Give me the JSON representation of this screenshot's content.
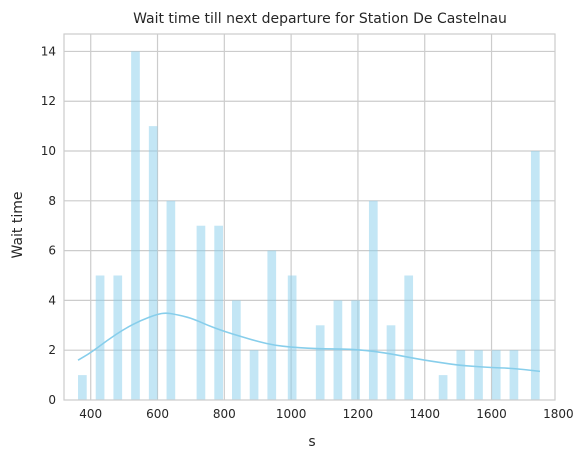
{
  "chart_data": {
    "type": "bar",
    "title": "Wait time till next departure for Station De Castelnau",
    "xlabel": "s",
    "ylabel": "Wait time",
    "xlim": [
      320,
      1790
    ],
    "ylim": [
      0,
      14.7
    ],
    "xticks": [
      400,
      600,
      800,
      1000,
      1200,
      1400,
      1600,
      1800
    ],
    "yticks": [
      0,
      2,
      4,
      6,
      8,
      10,
      12,
      14
    ],
    "grid": true,
    "color": "#87ceeb",
    "bars": [
      {
        "x": 375,
        "value": 1
      },
      {
        "x": 428,
        "value": 5
      },
      {
        "x": 481,
        "value": 5
      },
      {
        "x": 534,
        "value": 14
      },
      {
        "x": 587,
        "value": 11
      },
      {
        "x": 640,
        "value": 8
      },
      {
        "x": 730,
        "value": 7
      },
      {
        "x": 783,
        "value": 7
      },
      {
        "x": 836,
        "value": 4
      },
      {
        "x": 889,
        "value": 2
      },
      {
        "x": 942,
        "value": 6
      },
      {
        "x": 1003,
        "value": 5
      },
      {
        "x": 1087,
        "value": 3
      },
      {
        "x": 1140,
        "value": 4
      },
      {
        "x": 1193,
        "value": 4
      },
      {
        "x": 1246,
        "value": 8
      },
      {
        "x": 1299,
        "value": 3
      },
      {
        "x": 1352,
        "value": 5
      },
      {
        "x": 1455,
        "value": 1
      },
      {
        "x": 1508,
        "value": 2
      },
      {
        "x": 1561,
        "value": 2
      },
      {
        "x": 1614,
        "value": 2
      },
      {
        "x": 1667,
        "value": 2
      },
      {
        "x": 1731,
        "value": 10
      }
    ],
    "bar_width": 26,
    "kde": {
      "x": [
        362,
        400,
        450,
        500,
        550,
        600,
        625,
        650,
        700,
        750,
        800,
        850,
        900,
        950,
        1000,
        1050,
        1100,
        1150,
        1200,
        1250,
        1300,
        1350,
        1400,
        1450,
        1500,
        1550,
        1600,
        1650,
        1700,
        1745
      ],
      "y": [
        1.6,
        1.9,
        2.4,
        2.85,
        3.2,
        3.45,
        3.5,
        3.45,
        3.3,
        3.0,
        2.75,
        2.55,
        2.35,
        2.2,
        2.12,
        2.08,
        2.05,
        2.05,
        2.02,
        1.95,
        1.85,
        1.72,
        1.6,
        1.5,
        1.4,
        1.35,
        1.3,
        1.28,
        1.22,
        1.15
      ]
    }
  }
}
